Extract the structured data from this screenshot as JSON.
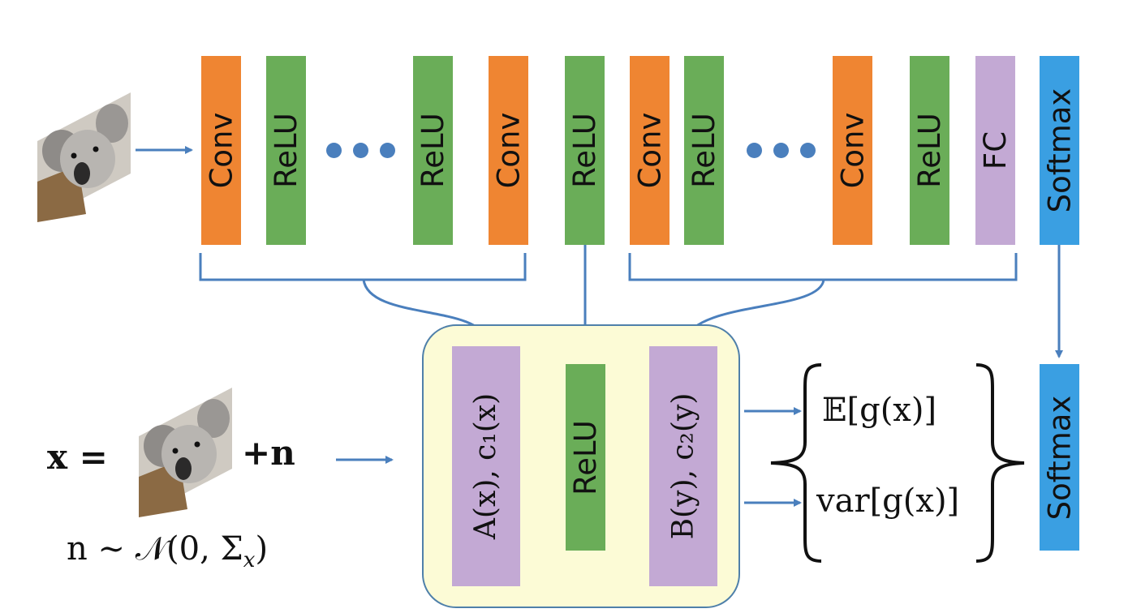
{
  "top_row": {
    "layers": [
      {
        "type": "conv",
        "label": "Conv"
      },
      {
        "type": "relu",
        "label": "ReLU"
      },
      {
        "type": "relu",
        "label": "ReLU"
      },
      {
        "type": "conv",
        "label": "Conv"
      },
      {
        "type": "relu",
        "label": "ReLU"
      },
      {
        "type": "conv",
        "label": "Conv"
      },
      {
        "type": "relu",
        "label": "ReLU"
      },
      {
        "type": "conv",
        "label": "Conv"
      },
      {
        "type": "relu",
        "label": "ReLU"
      },
      {
        "type": "fc",
        "label": "FC"
      },
      {
        "type": "softmax",
        "label": "Softmax"
      }
    ]
  },
  "bottom_row": {
    "input_lhs": "x =",
    "input_plus": "+n",
    "noise": "n ∼ 𝒩(0, Σ",
    "noise_sub": "x",
    "noise_close": ")",
    "layer_a": "A(x), c₁(x)",
    "layer_relu": "ReLU",
    "layer_b": "B(y), c₂(y)",
    "expectation": "𝔼[g(x)]",
    "variance": "var[g(x)]",
    "softmax": "Softmax"
  },
  "colors": {
    "conv": "#ef8532",
    "relu": "#6aad58",
    "fc": "#c3a9d4",
    "softmax": "#3a9fe2",
    "arrow": "#4a7fbd",
    "highlight_box": "#fcfbd6"
  },
  "icons": [
    "koala-image"
  ]
}
